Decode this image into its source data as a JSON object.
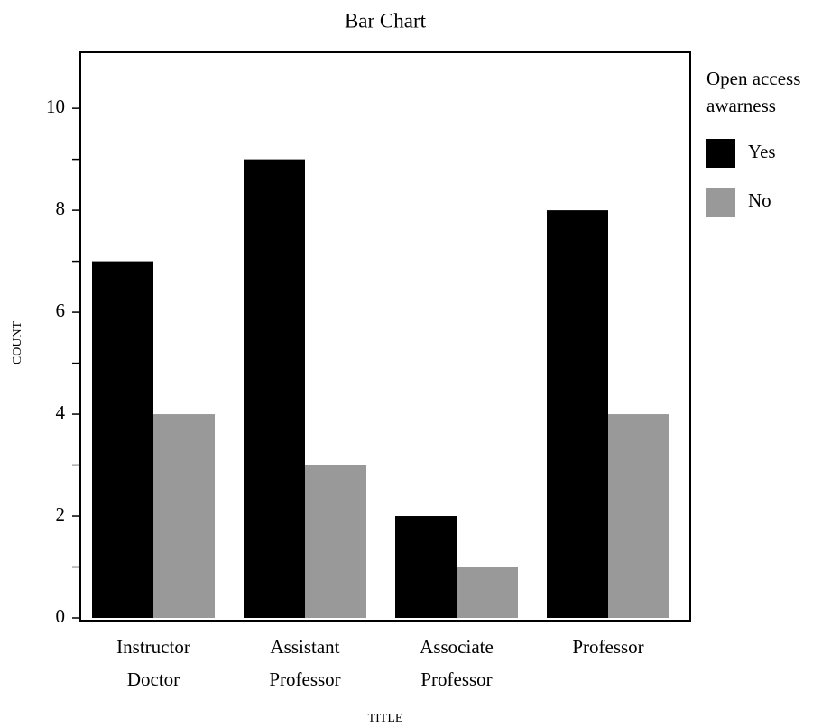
{
  "chart_data": {
    "type": "bar",
    "title": "Bar Chart",
    "x_label": "TITLE",
    "y_label": "COUNT",
    "categories": [
      [
        "Instructor",
        "Doctor"
      ],
      [
        "Assistant",
        "Professor"
      ],
      [
        "Associate",
        "Professor"
      ],
      [
        "Professor"
      ]
    ],
    "series": [
      {
        "name": "Yes",
        "color": "#000000",
        "values": [
          7,
          9,
          2,
          8
        ]
      },
      {
        "name": "No",
        "color": "#999999",
        "values": [
          4,
          3,
          1,
          4
        ]
      }
    ],
    "legend_title": [
      "Open access",
      "awarness"
    ],
    "legend": "right",
    "ylim": [
      0,
      11.1
    ],
    "yticks": [
      0,
      2,
      4,
      6,
      8,
      10
    ],
    "minor_yticks": [
      1,
      3,
      5,
      7,
      9
    ],
    "grid": false
  }
}
